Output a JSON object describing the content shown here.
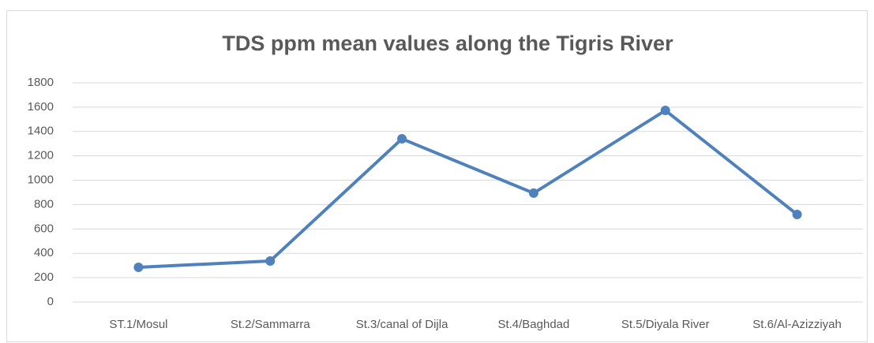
{
  "chart_data": {
    "type": "line",
    "title": "TDS ppm mean values along the Tigris River",
    "categories": [
      "ST.1/Mosul",
      "St.2/Sammarra",
      "St.3/canal of Dijla",
      "St.4/Baghdad",
      "St.5/Diyala River",
      "St.6/Al-Azizziyah"
    ],
    "values": [
      285,
      337,
      1340,
      894,
      1573,
      719
    ],
    "color": "#4f81bd",
    "ylim": [
      0,
      1800
    ],
    "yticks": [
      0,
      200,
      400,
      600,
      800,
      1000,
      1200,
      1400,
      1600,
      1800
    ],
    "grid": true
  }
}
